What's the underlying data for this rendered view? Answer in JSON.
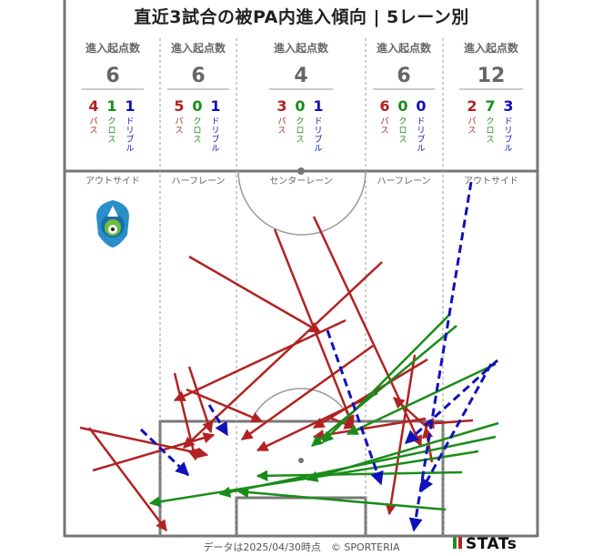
{
  "title": "直近3試合の被PA内進入傾向 | 5レーン別",
  "footer": "データは2025/04/30時点　© SPORTERIA",
  "brand": "STATs",
  "colors": {
    "pass": "#b22222",
    "cross": "#1a8c1a",
    "dribble": "#1111bb",
    "line": "#777777"
  },
  "type_labels": {
    "pass": "パス",
    "cross": "クロス",
    "dribble": "ドリブル"
  },
  "lanes": [
    {
      "header": "進入起点数",
      "total": "6",
      "pass": "4",
      "cross": "1",
      "dribble": "1",
      "name": "アウトサイド"
    },
    {
      "header": "進入起点数",
      "total": "6",
      "pass": "5",
      "cross": "0",
      "dribble": "1",
      "name": "ハーフレーン"
    },
    {
      "header": "進入起点数",
      "total": "4",
      "pass": "3",
      "cross": "0",
      "dribble": "1",
      "name": "センターレーン"
    },
    {
      "header": "進入起点数",
      "total": "6",
      "pass": "6",
      "cross": "0",
      "dribble": "0",
      "name": "ハーフレーン"
    },
    {
      "header": "進入起点数",
      "total": "12",
      "pass": "2",
      "cross": "7",
      "dribble": "3",
      "name": "アウトサイド"
    }
  ],
  "logo": {
    "name": "club-crest-icon"
  }
}
